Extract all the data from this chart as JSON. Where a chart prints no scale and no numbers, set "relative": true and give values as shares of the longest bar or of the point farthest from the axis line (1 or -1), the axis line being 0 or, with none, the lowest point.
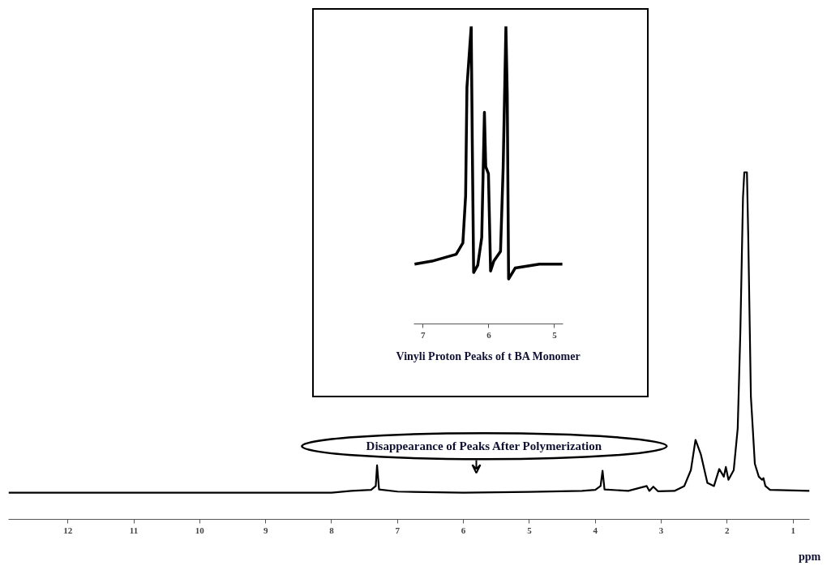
{
  "chart_data": [
    {
      "type": "line",
      "xlabel": "ppm",
      "xlim": [
        12.9,
        0.75
      ],
      "xticks": [
        12,
        11,
        10,
        9,
        8,
        7,
        6,
        5,
        4,
        3,
        2,
        1
      ],
      "relative": true,
      "tick_labels": "x",
      "line_style": "solid",
      "marker": "none",
      "series": [
        {
          "color": "#000000",
          "x": [
            12.9,
            8.0,
            7.7,
            7.4,
            7.33,
            7.31,
            7.28,
            7.0,
            6.0,
            5.0,
            4.2,
            4.0,
            3.92,
            3.89,
            3.86,
            3.5,
            3.22,
            3.18,
            3.12,
            3.05,
            2.8,
            2.65,
            2.55,
            2.48,
            2.4,
            2.3,
            2.2,
            2.12,
            2.05,
            2.02,
            1.98,
            1.9,
            1.84,
            1.8,
            1.76,
            1.74,
            1.7,
            1.68,
            1.64,
            1.58,
            1.52,
            1.47,
            1.45,
            1.42,
            1.35,
            0.75
          ],
          "values": [
            0.077,
            0.077,
            0.082,
            0.085,
            0.096,
            0.156,
            0.086,
            0.08,
            0.077,
            0.079,
            0.082,
            0.085,
            0.096,
            0.14,
            0.086,
            0.082,
            0.096,
            0.082,
            0.094,
            0.081,
            0.082,
            0.096,
            0.142,
            0.229,
            0.188,
            0.105,
            0.096,
            0.145,
            0.123,
            0.151,
            0.114,
            0.142,
            0.262,
            0.539,
            0.926,
            1.0,
            1.0,
            0.815,
            0.354,
            0.16,
            0.123,
            0.114,
            0.119,
            0.096,
            0.085,
            0.082
          ]
        }
      ],
      "annotations": [
        "Disappearance of Peaks After Polymerization"
      ]
    },
    {
      "type": "line",
      "xlabel": "Vinyli Proton Peaks of t BA Monomer",
      "xlim": [
        7.14,
        4.87
      ],
      "xticks": [
        7,
        6,
        5
      ],
      "relative": true,
      "tick_labels": "x",
      "line_style": "solid",
      "marker": "none",
      "series": [
        {
          "color": "#000000",
          "x": [
            7.13,
            6.865,
            6.497,
            6.395,
            6.353,
            6.333,
            6.292,
            6.268,
            6.252,
            6.231,
            6.169,
            6.108,
            6.067,
            6.047,
            6.006,
            5.973,
            5.924,
            5.822,
            5.782,
            5.74,
            5.72,
            5.699,
            5.598,
            5.229,
            4.881
          ],
          "values": [
            0.201,
            0.211,
            0.234,
            0.272,
            0.431,
            0.795,
            0.925,
            1.0,
            0.617,
            0.173,
            0.197,
            0.29,
            0.711,
            0.528,
            0.505,
            0.178,
            0.211,
            0.244,
            0.524,
            1.0,
            0.776,
            0.151,
            0.188,
            0.201,
            0.201
          ]
        }
      ]
    }
  ]
}
